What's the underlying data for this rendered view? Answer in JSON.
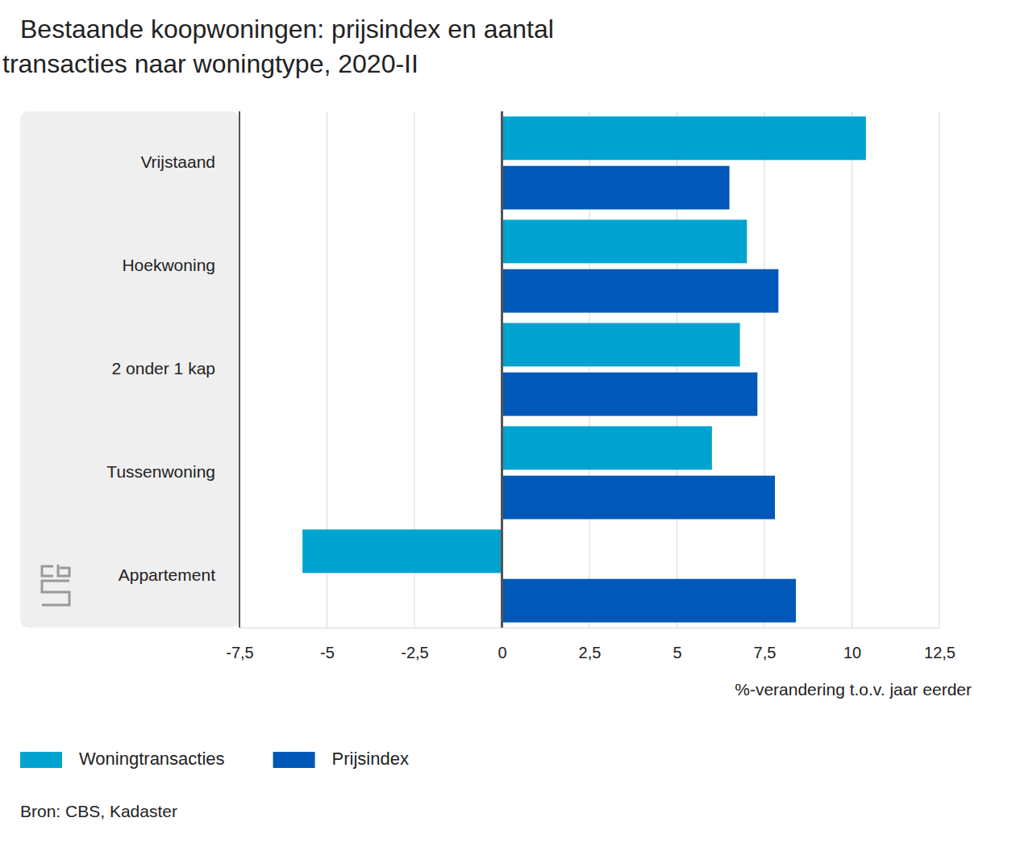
{
  "chart_data": {
    "type": "bar",
    "orientation": "horizontal",
    "title": "Bestaande koopwoningen: prijsindex en aantal transacties naar woningtype, 2020-II",
    "x_label": "%-verandering t.o.v. jaar eerder",
    "source": "Bron: CBS, Kadaster",
    "categories": [
      "Vrijstaand",
      "Hoekwoning",
      "2 onder 1 kap",
      "Tussenwoning",
      "Appartement"
    ],
    "series": [
      {
        "name": "Woningtransacties",
        "color": "#00a3cf",
        "values": [
          10.4,
          7.0,
          6.8,
          6.0,
          -5.7
        ]
      },
      {
        "name": "Prijsindex",
        "color": "#0058b8",
        "values": [
          6.5,
          7.9,
          7.3,
          7.8,
          8.4
        ]
      }
    ],
    "xlim": [
      -7.5,
      12.5
    ],
    "xticks": [
      {
        "value": -7.5,
        "label": "-7,5"
      },
      -5,
      {
        "value": -2.5,
        "label": "-2,5"
      },
      0,
      {
        "value": 2.5,
        "label": "2,5"
      },
      5,
      {
        "value": 7.5,
        "label": "7,5"
      },
      10,
      {
        "value": 12.5,
        "label": "12,5"
      }
    ],
    "grid": true,
    "legend": "bottom-left"
  }
}
